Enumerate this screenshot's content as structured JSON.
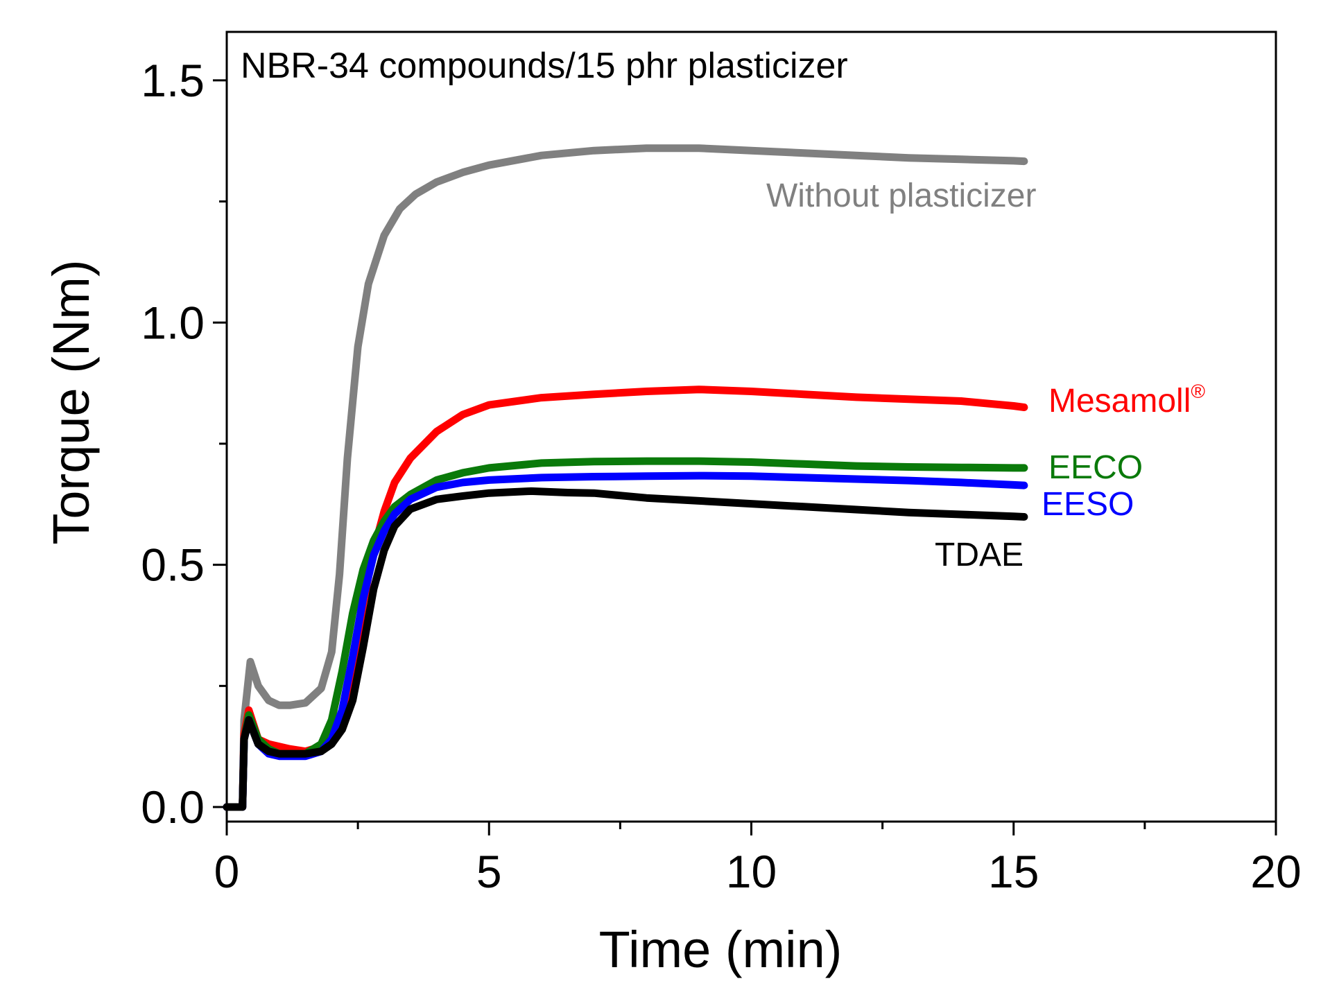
{
  "chart_data": {
    "type": "line",
    "title": "NBR-34 compounds/15 phr plasticizer",
    "xlabel": "Time (min)",
    "ylabel": "Torque (Nm)",
    "xlim": [
      0,
      20
    ],
    "ylim": [
      -0.03,
      1.6
    ],
    "x_ticks": [
      0,
      5,
      10,
      15,
      20
    ],
    "x_tick_labels": [
      "0",
      "5",
      "10",
      "15",
      "20"
    ],
    "y_ticks": [
      0.0,
      0.5,
      1.0,
      1.5
    ],
    "y_tick_labels": [
      "0.0",
      "0.5",
      "1.0",
      "1.5"
    ],
    "grid": false,
    "series": [
      {
        "name": "Without plasticizer",
        "label": "Without plasticizer",
        "color": "#808080",
        "x": [
          0,
          0.3,
          0.33,
          0.45,
          0.6,
          0.8,
          1.0,
          1.2,
          1.5,
          1.8,
          2.0,
          2.15,
          2.3,
          2.5,
          2.7,
          3.0,
          3.3,
          3.6,
          4.0,
          4.5,
          5.0,
          6.0,
          7.0,
          8.0,
          9.0,
          10.0,
          11.0,
          12.0,
          13.0,
          14.0,
          15.0,
          15.2
        ],
        "values": [
          0.0,
          0.0,
          0.18,
          0.3,
          0.25,
          0.22,
          0.21,
          0.21,
          0.215,
          0.245,
          0.32,
          0.48,
          0.72,
          0.95,
          1.08,
          1.18,
          1.235,
          1.265,
          1.29,
          1.31,
          1.325,
          1.345,
          1.355,
          1.36,
          1.36,
          1.355,
          1.35,
          1.345,
          1.34,
          1.337,
          1.334,
          1.333
        ]
      },
      {
        "name": "Mesamoll®",
        "label": "Mesamoll",
        "label_sup": "®",
        "color": "#ff0000",
        "x": [
          0,
          0.3,
          0.33,
          0.42,
          0.6,
          0.8,
          1.0,
          1.2,
          1.5,
          1.8,
          2.0,
          2.2,
          2.4,
          2.6,
          2.8,
          3.0,
          3.2,
          3.5,
          4.0,
          4.5,
          5.0,
          6.0,
          7.0,
          8.0,
          9.0,
          10.0,
          11.0,
          12.0,
          13.0,
          14.0,
          15.0,
          15.2
        ],
        "values": [
          0.0,
          0.0,
          0.15,
          0.2,
          0.14,
          0.13,
          0.125,
          0.12,
          0.115,
          0.125,
          0.14,
          0.18,
          0.28,
          0.42,
          0.53,
          0.61,
          0.67,
          0.72,
          0.775,
          0.81,
          0.83,
          0.845,
          0.852,
          0.858,
          0.862,
          0.858,
          0.852,
          0.846,
          0.842,
          0.838,
          0.828,
          0.825
        ]
      },
      {
        "name": "EECO",
        "label": "EECO",
        "color": "#0a7a0a",
        "x": [
          0,
          0.3,
          0.33,
          0.42,
          0.6,
          0.8,
          1.0,
          1.2,
          1.5,
          1.8,
          2.0,
          2.2,
          2.4,
          2.6,
          2.8,
          3.0,
          3.2,
          3.5,
          4.0,
          4.5,
          5.0,
          6.0,
          7.0,
          8.0,
          9.0,
          10.0,
          11.0,
          12.0,
          13.0,
          14.0,
          15.0,
          15.2
        ],
        "values": [
          0.0,
          0.0,
          0.14,
          0.19,
          0.14,
          0.12,
          0.11,
          0.11,
          0.11,
          0.13,
          0.18,
          0.28,
          0.4,
          0.49,
          0.55,
          0.59,
          0.62,
          0.645,
          0.675,
          0.69,
          0.7,
          0.71,
          0.713,
          0.714,
          0.714,
          0.712,
          0.708,
          0.704,
          0.702,
          0.701,
          0.7,
          0.7
        ]
      },
      {
        "name": "EESO",
        "label": "EESO",
        "color": "#0000ff",
        "x": [
          0,
          0.3,
          0.33,
          0.42,
          0.6,
          0.8,
          1.0,
          1.2,
          1.5,
          1.8,
          2.0,
          2.2,
          2.4,
          2.6,
          2.8,
          3.0,
          3.2,
          3.5,
          4.0,
          4.5,
          5.0,
          6.0,
          7.0,
          8.0,
          9.0,
          10.0,
          11.0,
          12.0,
          13.0,
          14.0,
          15.0,
          15.2
        ],
        "values": [
          0.0,
          0.0,
          0.14,
          0.18,
          0.13,
          0.11,
          0.105,
          0.105,
          0.105,
          0.115,
          0.14,
          0.2,
          0.31,
          0.43,
          0.52,
          0.57,
          0.605,
          0.635,
          0.66,
          0.67,
          0.675,
          0.68,
          0.682,
          0.683,
          0.684,
          0.683,
          0.68,
          0.677,
          0.674,
          0.67,
          0.665,
          0.664
        ]
      },
      {
        "name": "TDAE",
        "label": "TDAE",
        "color": "#000000",
        "x": [
          0,
          0.3,
          0.33,
          0.42,
          0.6,
          0.8,
          1.0,
          1.2,
          1.5,
          1.8,
          2.0,
          2.2,
          2.4,
          2.6,
          2.8,
          3.0,
          3.2,
          3.5,
          4.0,
          4.5,
          5.0,
          5.8,
          6.5,
          7.0,
          7.5,
          8.0,
          9.0,
          10.0,
          11.0,
          12.0,
          13.0,
          14.0,
          15.0,
          15.2
        ],
        "values": [
          0.0,
          0.0,
          0.14,
          0.18,
          0.13,
          0.115,
          0.11,
          0.11,
          0.11,
          0.115,
          0.13,
          0.16,
          0.22,
          0.33,
          0.45,
          0.53,
          0.58,
          0.615,
          0.635,
          0.642,
          0.648,
          0.652,
          0.649,
          0.648,
          0.643,
          0.638,
          0.632,
          0.626,
          0.62,
          0.614,
          0.608,
          0.604,
          0.6,
          0.599
        ]
      }
    ]
  }
}
